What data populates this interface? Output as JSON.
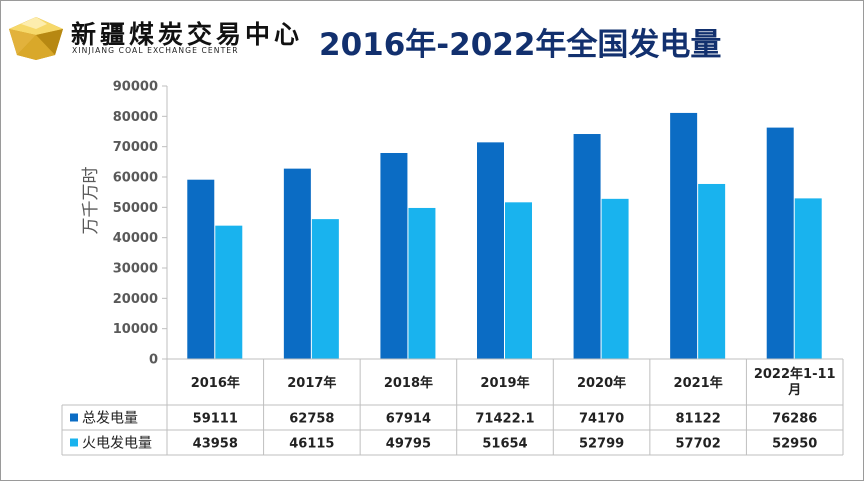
{
  "header": {
    "brand_cn": "新疆煤炭交易中心",
    "brand_en": "XINJIANG COAL EXCHANGE CENTER",
    "title": "2016年-2022年全国发电量"
  },
  "colors": {
    "total": "#0b6cc4",
    "thermal": "#19b3ee",
    "title": "#12306e"
  },
  "chart_data": {
    "type": "bar",
    "title": "2016年-2022年全国发电量",
    "ylabel": "万千万时",
    "xlabel": "",
    "categories": [
      "2016年",
      "2017年",
      "2018年",
      "2019年",
      "2020年",
      "2021年",
      "2022年1-11月"
    ],
    "category_lines": [
      [
        "2016年"
      ],
      [
        "2017年"
      ],
      [
        "2018年"
      ],
      [
        "2019年"
      ],
      [
        "2020年"
      ],
      [
        "2021年"
      ],
      [
        "2022年1-11",
        "月"
      ]
    ],
    "series": [
      {
        "name": "总发电量",
        "values": [
          59111,
          62758,
          67914,
          71422.1,
          74170,
          81122,
          76286
        ],
        "labels": [
          "59111",
          "62758",
          "67914",
          "71422.1",
          "74170",
          "81122",
          "76286"
        ]
      },
      {
        "name": "火电发电量",
        "values": [
          43958,
          46115,
          49795,
          51654,
          52799,
          57702,
          52950
        ],
        "labels": [
          "43958",
          "46115",
          "49795",
          "51654",
          "52799",
          "57702",
          "52950"
        ]
      }
    ],
    "ylim": [
      0,
      90000
    ],
    "yticks": [
      0,
      10000,
      20000,
      30000,
      40000,
      50000,
      60000,
      70000,
      80000,
      90000
    ],
    "grid": false,
    "legend": "data-table"
  }
}
